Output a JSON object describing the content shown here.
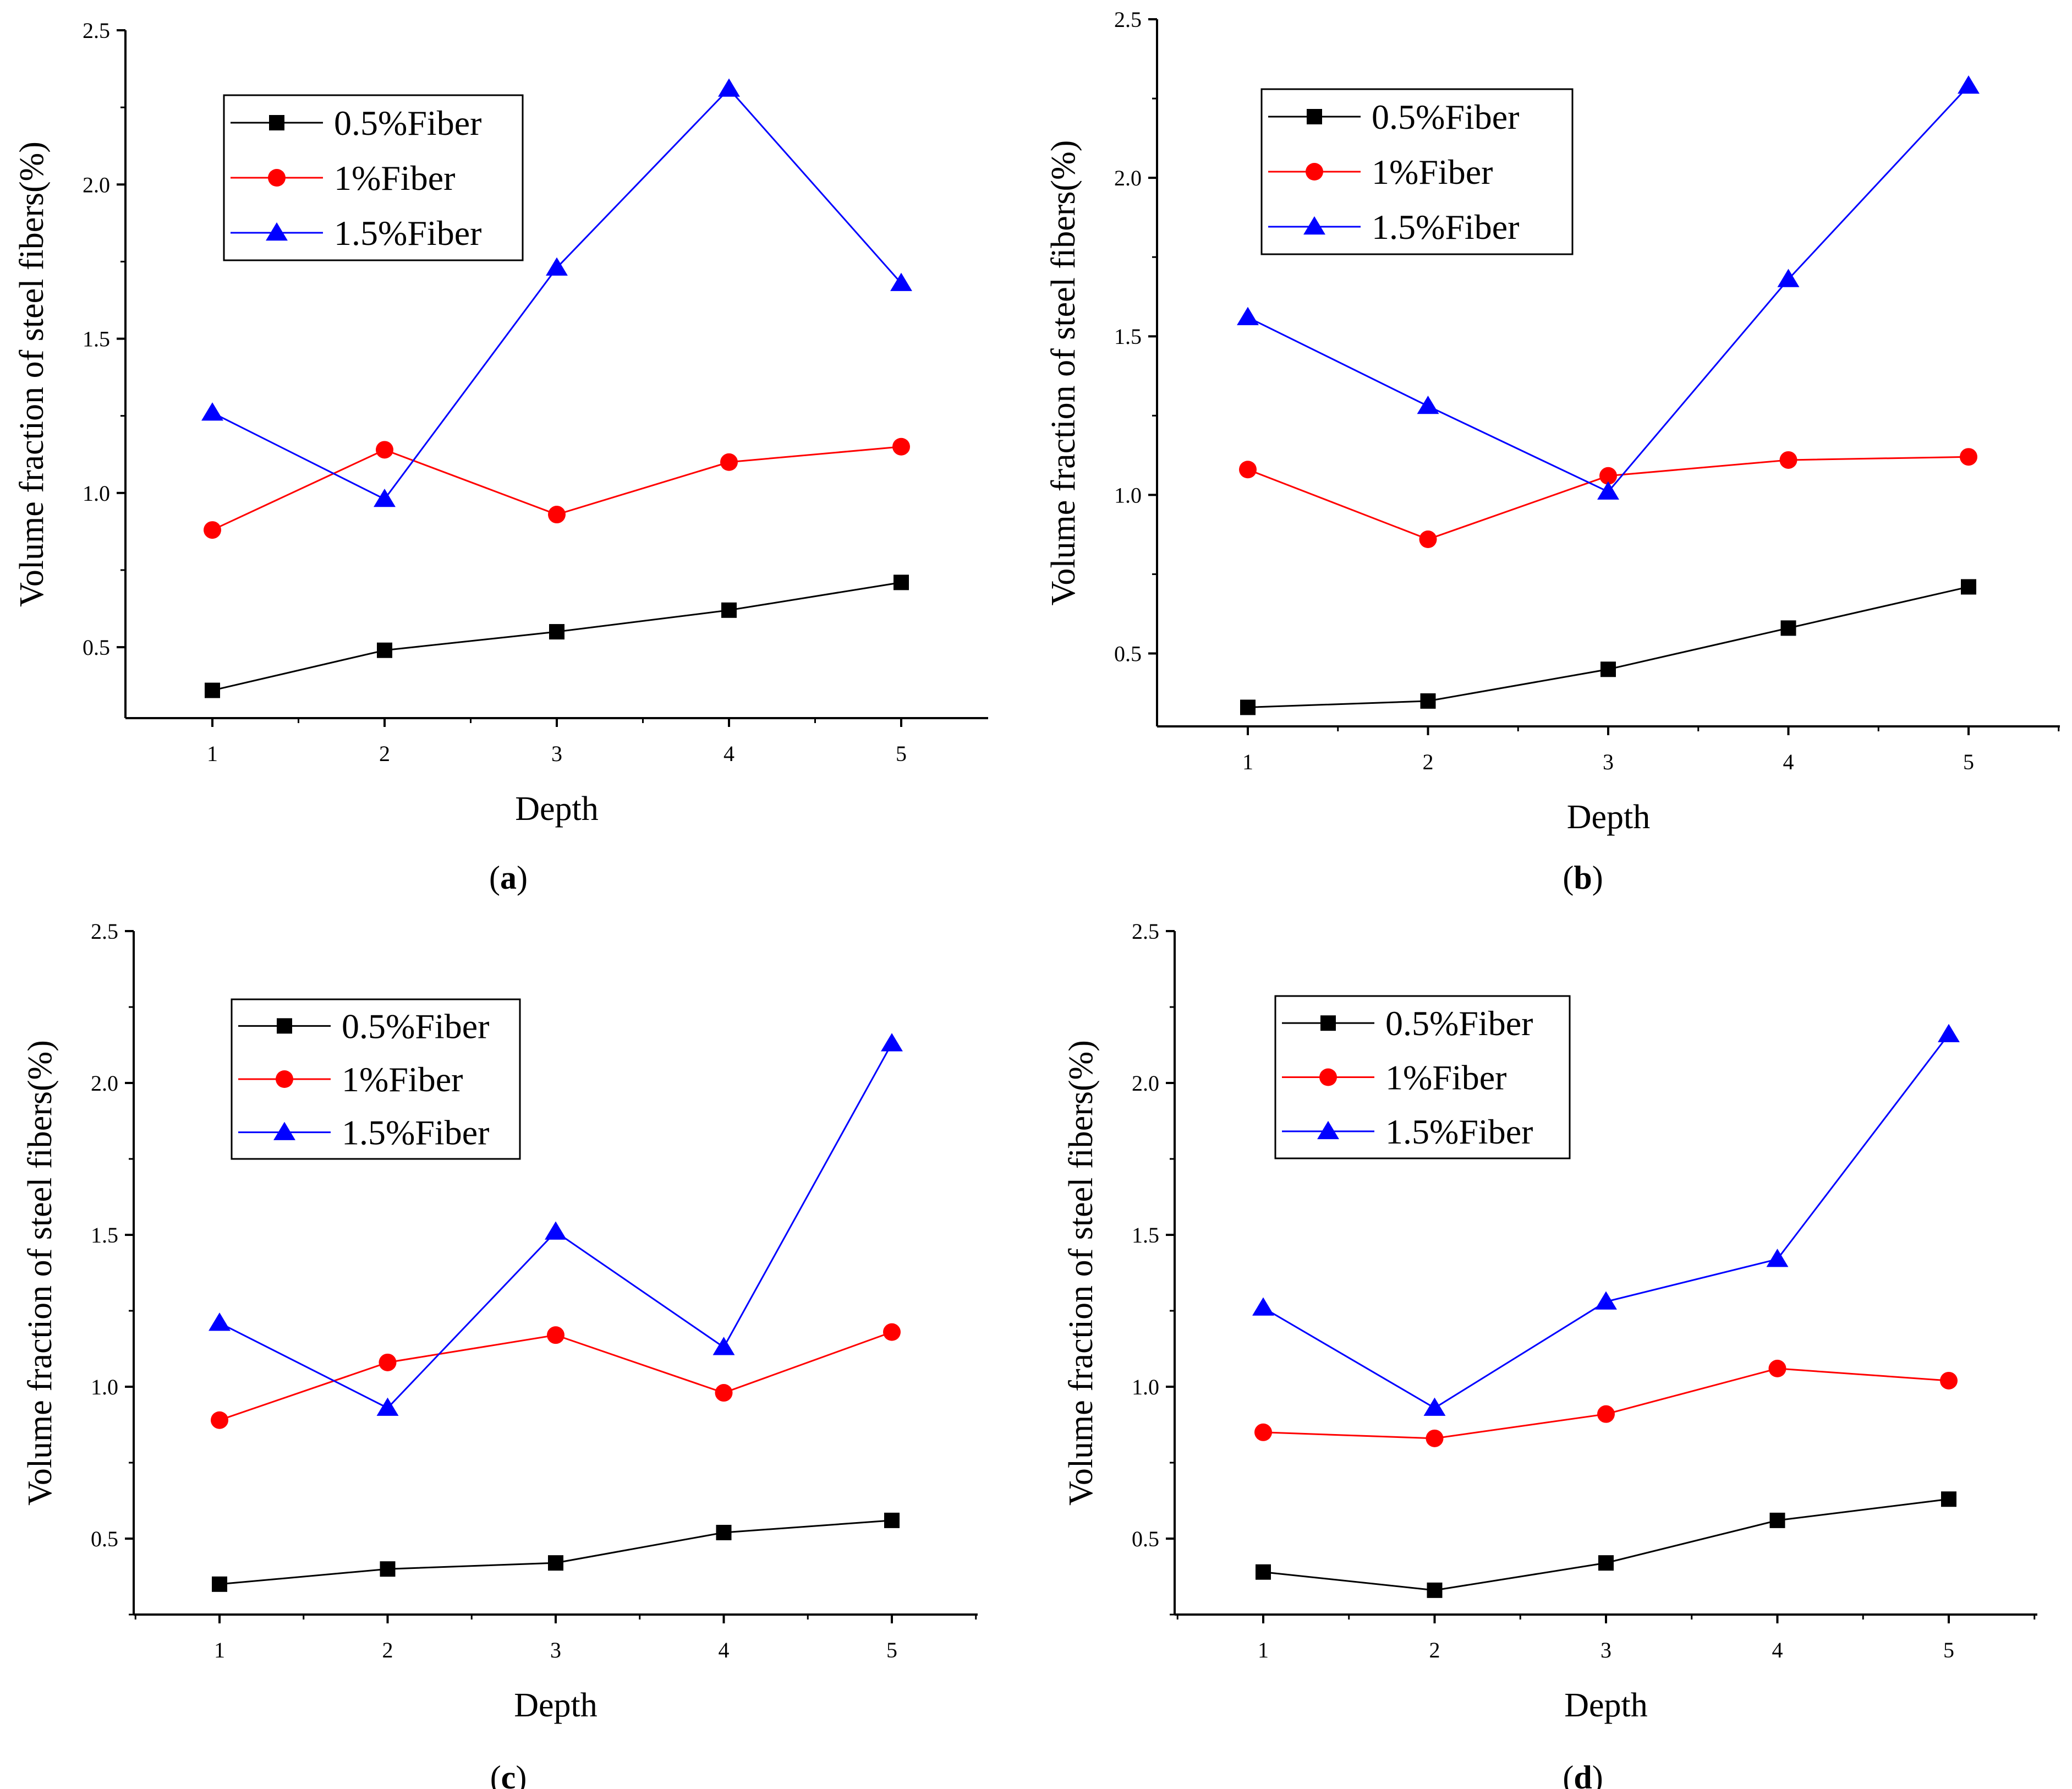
{
  "chart_data": [
    {
      "type": "line",
      "panel_label": "a",
      "xlabel": "Depth",
      "ylabel": "Volume fraction of steel fibers(%)",
      "x": [
        1,
        2,
        3,
        4,
        5
      ],
      "xticks": [
        "1",
        "2",
        "3",
        "4",
        "5"
      ],
      "yticks": [
        "0.5",
        "1.0",
        "1.5",
        "2.0",
        "2.5"
      ],
      "ylim": [
        0.27,
        2.5
      ],
      "legend_position": "top-left",
      "series": [
        {
          "name": "0.5%Fiber",
          "values": [
            0.36,
            0.49,
            0.55,
            0.62,
            0.71
          ],
          "color": "#000000",
          "marker": "square"
        },
        {
          "name": "1%Fiber",
          "values": [
            0.88,
            1.14,
            0.93,
            1.1,
            1.15
          ],
          "color": "#ff0000",
          "marker": "circle"
        },
        {
          "name": "1.5%Fiber",
          "values": [
            1.26,
            0.98,
            1.73,
            2.31,
            1.68
          ],
          "color": "#0000ff",
          "marker": "triangle"
        }
      ]
    },
    {
      "type": "line",
      "panel_label": "b",
      "xlabel": "Depth",
      "ylabel": "Volume fraction of steel fibers(%)",
      "x": [
        1,
        2,
        3,
        4,
        5
      ],
      "xticks": [
        "1",
        "2",
        "3",
        "4",
        "5"
      ],
      "yticks": [
        "0.5",
        "1.0",
        "1.5",
        "2.0",
        "2.5"
      ],
      "ylim": [
        0.27,
        2.5
      ],
      "legend_position": "top-left",
      "series": [
        {
          "name": "0.5%Fiber",
          "values": [
            0.33,
            0.35,
            0.45,
            0.58,
            0.71
          ],
          "color": "#000000",
          "marker": "square"
        },
        {
          "name": "1%Fiber",
          "values": [
            1.08,
            0.86,
            1.06,
            1.11,
            1.12
          ],
          "color": "#ff0000",
          "marker": "circle"
        },
        {
          "name": "1.5%Fiber",
          "values": [
            1.56,
            1.28,
            1.01,
            1.68,
            2.29
          ],
          "color": "#0000ff",
          "marker": "triangle"
        }
      ]
    },
    {
      "type": "line",
      "panel_label": "c",
      "xlabel": "Depth",
      "ylabel": "Volume fraction of steel fibers(%)",
      "x": [
        1,
        2,
        3,
        4,
        5
      ],
      "xticks": [
        "1",
        "2",
        "3",
        "4",
        "5"
      ],
      "yticks": [
        "0.5",
        "1.0",
        "1.5",
        "2.0",
        "2.5"
      ],
      "ylim": [
        0.25,
        2.5
      ],
      "legend_position": "top-left",
      "series": [
        {
          "name": "0.5%Fiber",
          "values": [
            0.35,
            0.4,
            0.42,
            0.52,
            0.56
          ],
          "color": "#000000",
          "marker": "square"
        },
        {
          "name": "1%Fiber",
          "values": [
            0.89,
            1.08,
            1.17,
            0.98,
            1.18
          ],
          "color": "#ff0000",
          "marker": "circle"
        },
        {
          "name": "1.5%Fiber",
          "values": [
            1.21,
            0.93,
            1.51,
            1.13,
            2.13
          ],
          "color": "#0000ff",
          "marker": "triangle"
        }
      ]
    },
    {
      "type": "line",
      "panel_label": "d",
      "xlabel": "Depth",
      "ylabel": "Volume fraction of steel fibers(%)",
      "x": [
        1,
        2,
        3,
        4,
        5
      ],
      "xticks": [
        "1",
        "2",
        "3",
        "4",
        "5"
      ],
      "yticks": [
        "0.5",
        "1.0",
        "1.5",
        "2.0",
        "2.5"
      ],
      "ylim": [
        0.25,
        2.5
      ],
      "legend_position": "top-left",
      "series": [
        {
          "name": "0.5%Fiber",
          "values": [
            0.39,
            0.33,
            0.42,
            0.56,
            0.63
          ],
          "color": "#000000",
          "marker": "square"
        },
        {
          "name": "1%Fiber",
          "values": [
            0.85,
            0.83,
            0.91,
            1.06,
            1.02
          ],
          "color": "#ff0000",
          "marker": "circle"
        },
        {
          "name": "1.5%Fiber",
          "values": [
            1.26,
            0.93,
            1.28,
            1.42,
            2.16
          ],
          "color": "#0000ff",
          "marker": "triangle"
        }
      ]
    }
  ]
}
